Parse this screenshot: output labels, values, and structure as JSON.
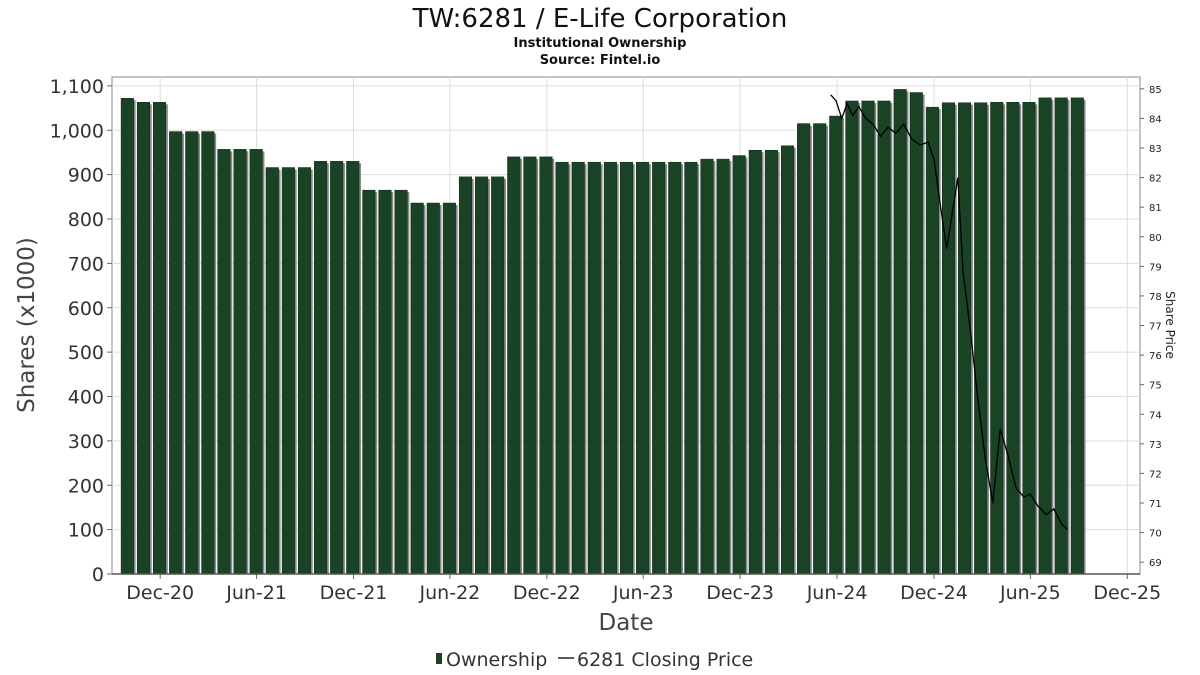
{
  "chart_data": {
    "type": "bar",
    "title": "TW:6281 / E-Life Corporation",
    "subtitle": "Institutional Ownership",
    "source": "Source: Fintel.io",
    "xlabel": "Date",
    "ylabel": "Shares (x1000)",
    "ylabel_right": "Share Price",
    "ylim": [
      0,
      1120
    ],
    "ylim_right": [
      68.6,
      85.4
    ],
    "xlim": [
      "2020-09-01",
      "2025-12-25"
    ],
    "y_ticks": [
      0,
      100,
      200,
      300,
      400,
      500,
      600,
      700,
      800,
      900,
      1000,
      1100
    ],
    "y_tick_labels": [
      "0",
      "100",
      "200",
      "300",
      "400",
      "500",
      "600",
      "700",
      "800",
      "900",
      "1,000",
      "1,100"
    ],
    "y_right_ticks": [
      69,
      70,
      71,
      72,
      73,
      74,
      75,
      76,
      77,
      78,
      79,
      80,
      81,
      82,
      83,
      84,
      85
    ],
    "x_ticks": [
      {
        "label": "Dec-20",
        "date": "2020-12-01"
      },
      {
        "label": "Jun-21",
        "date": "2021-06-01"
      },
      {
        "label": "Dec-21",
        "date": "2021-12-01"
      },
      {
        "label": "Jun-22",
        "date": "2022-06-01"
      },
      {
        "label": "Dec-22",
        "date": "2022-12-01"
      },
      {
        "label": "Jun-23",
        "date": "2023-06-01"
      },
      {
        "label": "Dec-23",
        "date": "2023-12-01"
      },
      {
        "label": "Jun-24",
        "date": "2024-06-01"
      },
      {
        "label": "Dec-24",
        "date": "2024-12-01"
      },
      {
        "label": "Jun-25",
        "date": "2025-06-01"
      },
      {
        "label": "Dec-25",
        "date": "2025-12-01"
      }
    ],
    "grid": true,
    "legend_position": "bottom-center",
    "series": [
      {
        "name": "Ownership",
        "color": "#1a4325",
        "values": [
          1072,
          1063,
          1063,
          997,
          997,
          997,
          957,
          957,
          957,
          916,
          916,
          916,
          930,
          930,
          930,
          865,
          865,
          865,
          836,
          836,
          836,
          895,
          895,
          895,
          940,
          940,
          940,
          928,
          928,
          928,
          928,
          928,
          928,
          928,
          928,
          928,
          935,
          935,
          943,
          955,
          955,
          965,
          1015,
          1015,
          1032,
          1066,
          1066,
          1066,
          1092,
          1085,
          1052,
          1062,
          1062,
          1062,
          1063,
          1063,
          1063,
          1073,
          1073,
          1073
        ]
      },
      {
        "name": "6281 Closing Price",
        "color": "#000000",
        "points": [
          [
            "2024-05-20",
            84.8
          ],
          [
            "2024-05-30",
            84.6
          ],
          [
            "2024-06-10",
            84.0
          ],
          [
            "2024-06-20",
            84.5
          ],
          [
            "2024-07-01",
            84.1
          ],
          [
            "2024-07-12",
            84.4
          ],
          [
            "2024-07-25",
            84.0
          ],
          [
            "2024-08-08",
            83.8
          ],
          [
            "2024-08-22",
            83.4
          ],
          [
            "2024-09-05",
            83.7
          ],
          [
            "2024-09-20",
            83.5
          ],
          [
            "2024-10-05",
            83.8
          ],
          [
            "2024-10-20",
            83.3
          ],
          [
            "2024-11-05",
            83.1
          ],
          [
            "2024-11-20",
            83.2
          ],
          [
            "2024-12-01",
            82.6
          ],
          [
            "2024-12-12",
            81.2
          ],
          [
            "2024-12-25",
            79.6
          ],
          [
            "2025-01-08",
            81.2
          ],
          [
            "2025-01-15",
            82.0
          ],
          [
            "2025-01-25",
            78.8
          ],
          [
            "2025-02-08",
            76.8
          ],
          [
            "2025-02-22",
            74.5
          ],
          [
            "2025-03-08",
            72.5
          ],
          [
            "2025-03-22",
            71.0
          ],
          [
            "2025-04-05",
            73.5
          ],
          [
            "2025-04-20",
            72.6
          ],
          [
            "2025-05-05",
            71.5
          ],
          [
            "2025-05-20",
            71.2
          ],
          [
            "2025-06-01",
            71.3
          ],
          [
            "2025-06-15",
            70.9
          ],
          [
            "2025-07-01",
            70.6
          ],
          [
            "2025-07-15",
            70.8
          ],
          [
            "2025-07-30",
            70.3
          ],
          [
            "2025-08-10",
            70.1
          ]
        ]
      }
    ],
    "bar_dates": {
      "start": "2020-09-30",
      "step_days": 30.4
    },
    "legend": [
      "Ownership",
      "6281 Closing Price"
    ]
  }
}
